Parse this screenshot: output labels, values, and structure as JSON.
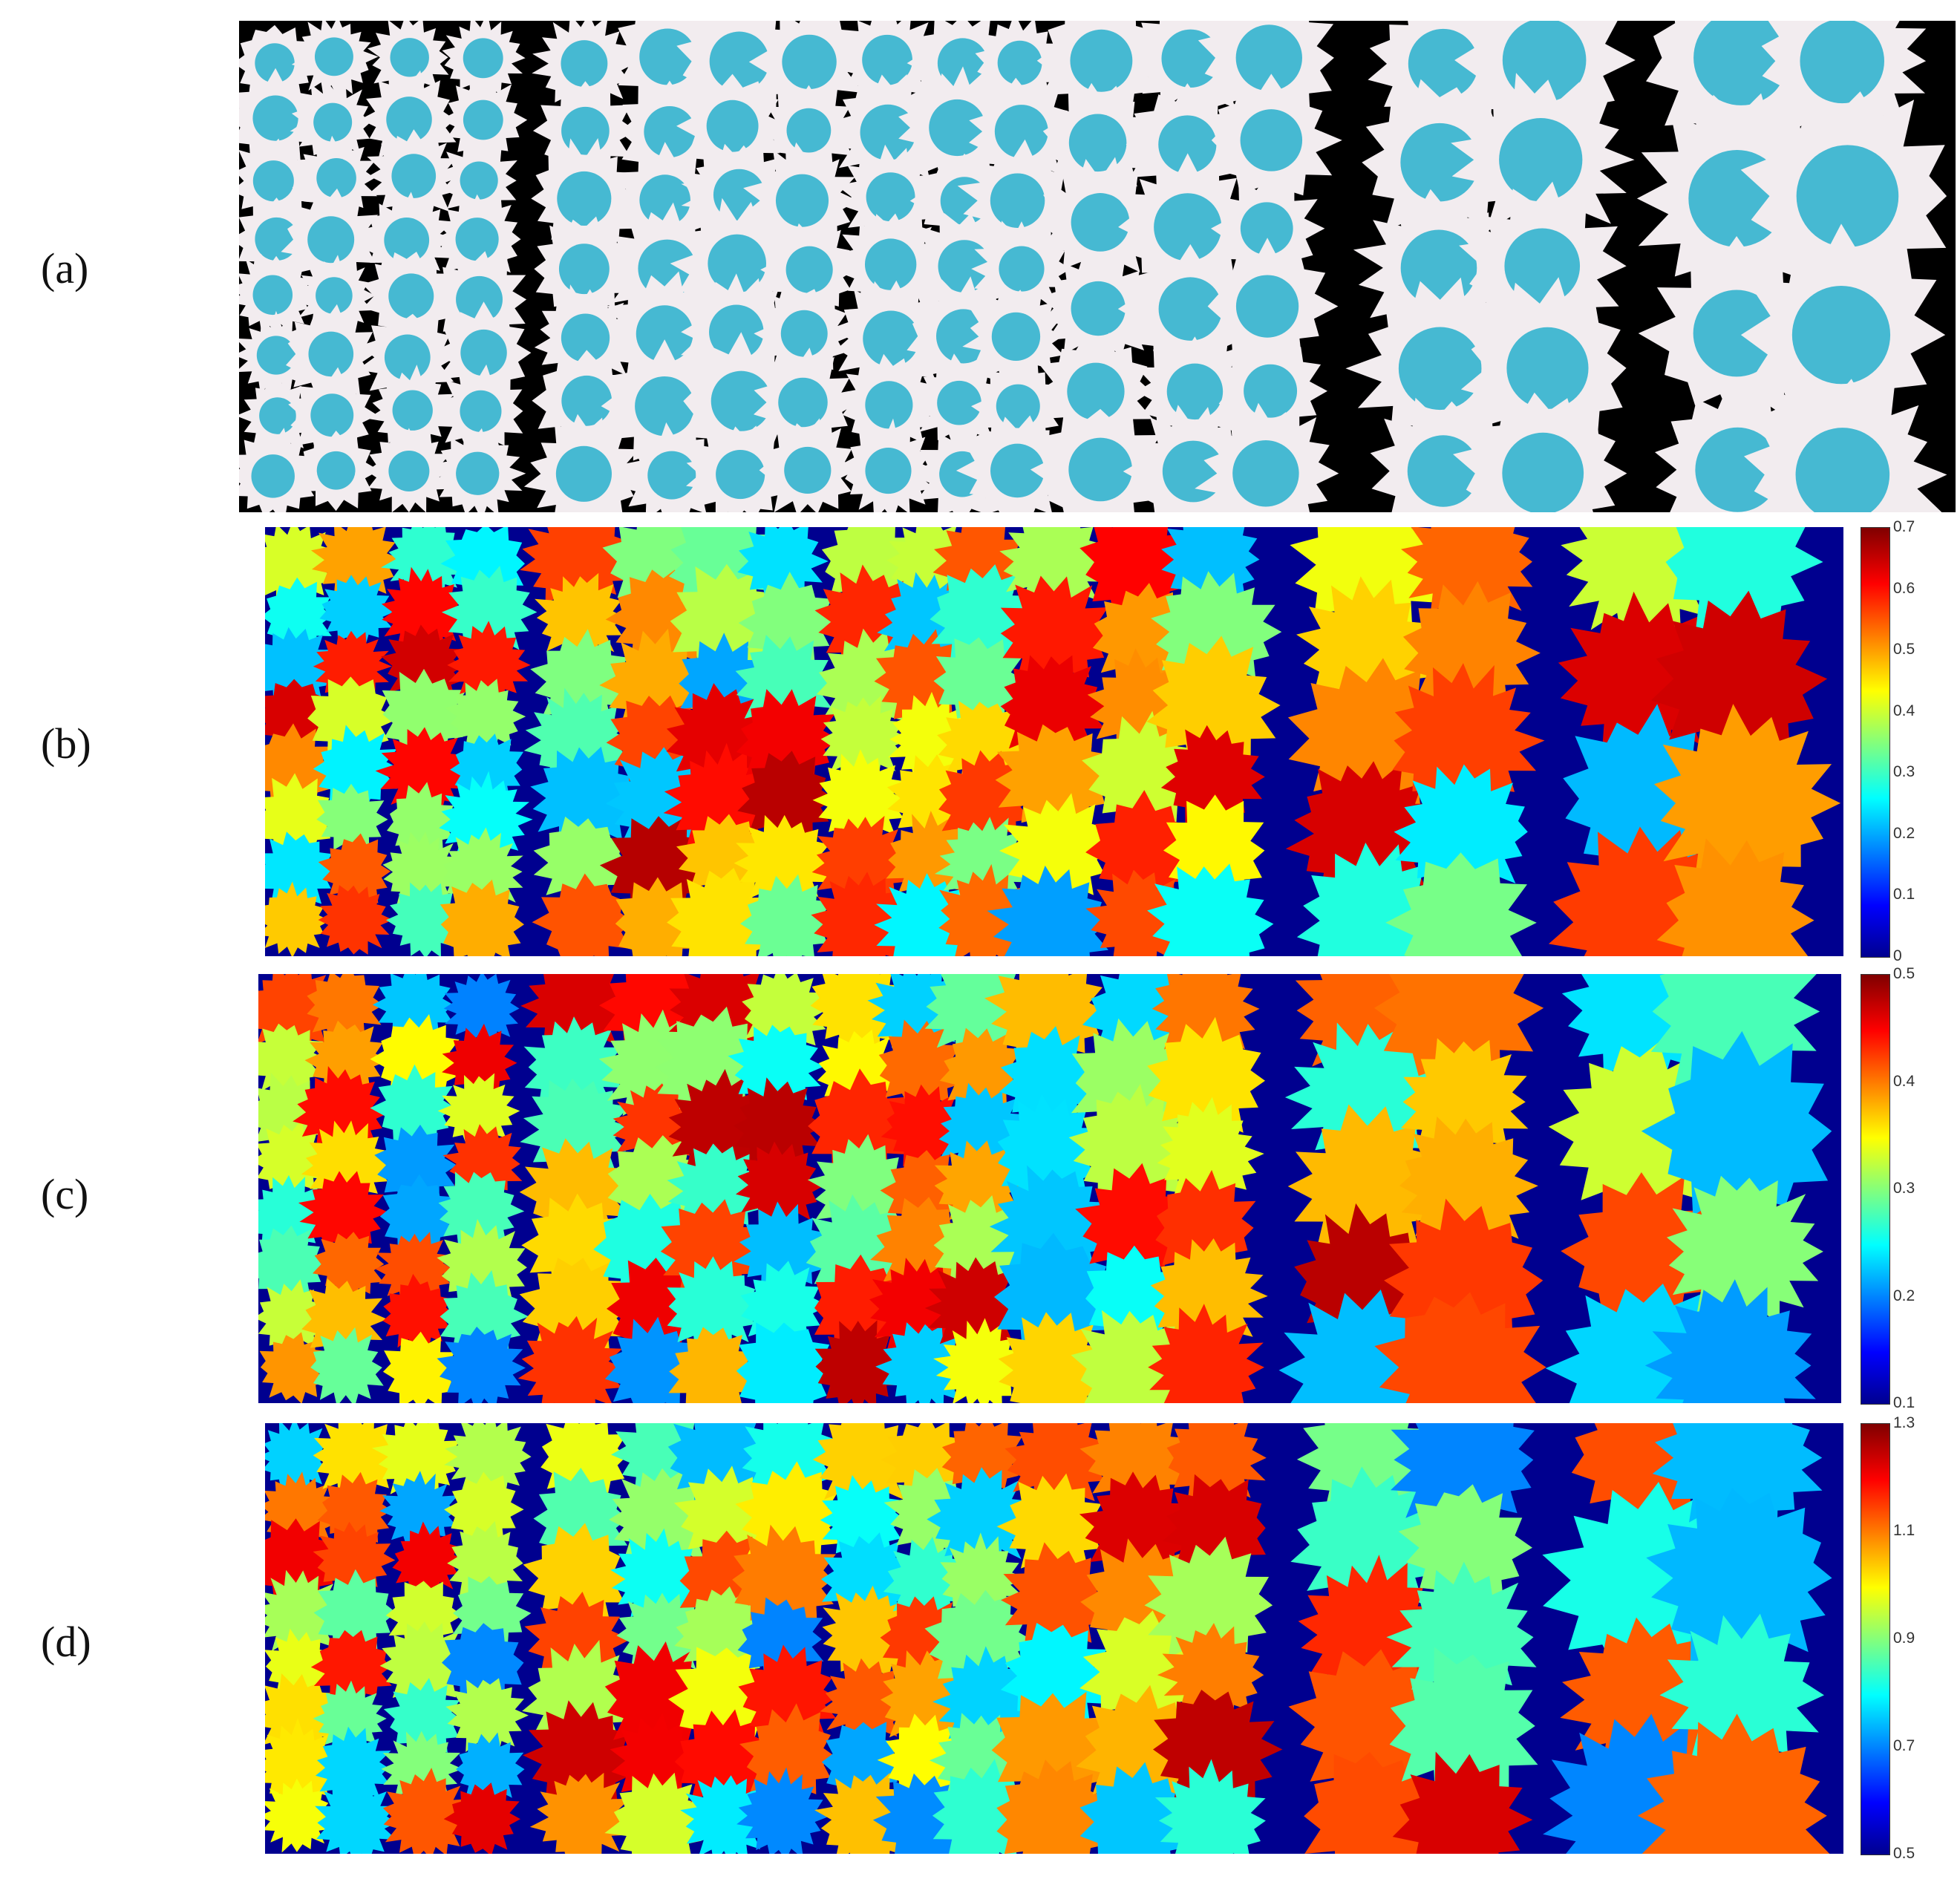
{
  "figure": {
    "panels": [
      {
        "id": "a",
        "label": "(a)",
        "kind": "photo",
        "background": "#000000"
      },
      {
        "id": "b",
        "label": "(b)",
        "kind": "map",
        "background": "#00008f",
        "colorbar": {
          "min": "0",
          "max": "0.7",
          "ticks": [
            "0.7",
            "0.6",
            "0.5",
            "0.4",
            "0.3",
            "0.2",
            "0.1",
            "0"
          ]
        }
      },
      {
        "id": "c",
        "label": "(c)",
        "kind": "map",
        "background": "#00008f",
        "colorbar": {
          "min": "0.1",
          "max": "0.5",
          "ticks": [
            "0.5",
            "0.4",
            "0.3",
            "0.2",
            "0.1"
          ]
        }
      },
      {
        "id": "d",
        "label": "(d)",
        "kind": "map",
        "background": "#00008f",
        "colorbar": {
          "min": "0.5",
          "max": "1.3",
          "ticks": [
            "1.3",
            "1.1",
            "0.9",
            "0.7",
            "0.5"
          ]
        }
      }
    ],
    "colormap": "jet",
    "colors": {
      "photo_flower_petal": "#f2ecef",
      "photo_flower_center": "#46b9d2",
      "map_background": "#00008f"
    }
  }
}
